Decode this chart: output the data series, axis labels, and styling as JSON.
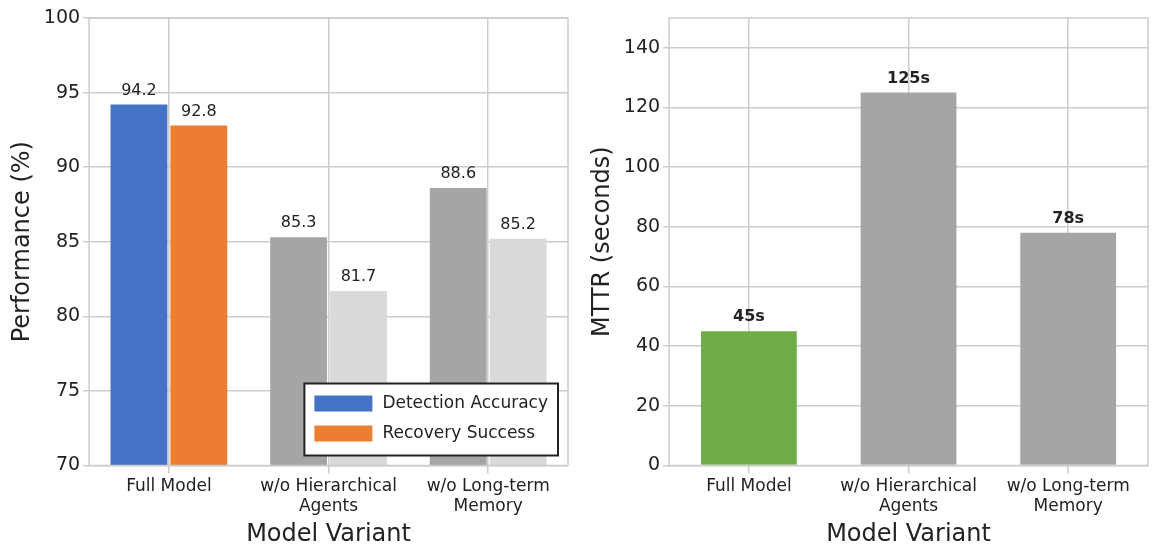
{
  "chart_data": [
    {
      "type": "bar",
      "xlabel": "Model Variant",
      "ylabel": "Performance (%)",
      "categories": [
        "Full Model",
        "w/o Hierarchical Agents",
        "w/o Long-term Memory"
      ],
      "series": [
        {
          "name": "Detection Accuracy",
          "color": "#4472c4",
          "colors": [
            "#4472c4",
            "#a5a5a5",
            "#a5a5a5"
          ],
          "values": [
            94.2,
            85.3,
            88.6
          ]
        },
        {
          "name": "Recovery Success",
          "color": "#ed7d31",
          "colors": [
            "#ed7d31",
            "#d9d9d9",
            "#d9d9d9"
          ],
          "values": [
            92.8,
            81.7,
            85.2
          ]
        }
      ],
      "ylim": [
        70,
        100
      ],
      "yticks": [
        70,
        75,
        80,
        85,
        90,
        95,
        100
      ],
      "grid": true,
      "legend": "bottom right",
      "data_labels": true
    },
    {
      "type": "bar",
      "xlabel": "Model Variant",
      "ylabel": "MTTR (seconds)",
      "categories": [
        "Full Model",
        "w/o Hierarchical Agents",
        "w/o Long-term Memory"
      ],
      "values": [
        45,
        125,
        78
      ],
      "colors": [
        "#70ad47",
        "#a5a5a5",
        "#a5a5a5"
      ],
      "value_labels": [
        "45s",
        "125s",
        "78s"
      ],
      "ylim": [
        0,
        150
      ],
      "yticks": [
        0,
        20,
        40,
        60,
        80,
        100,
        120,
        140
      ],
      "grid": true
    }
  ]
}
